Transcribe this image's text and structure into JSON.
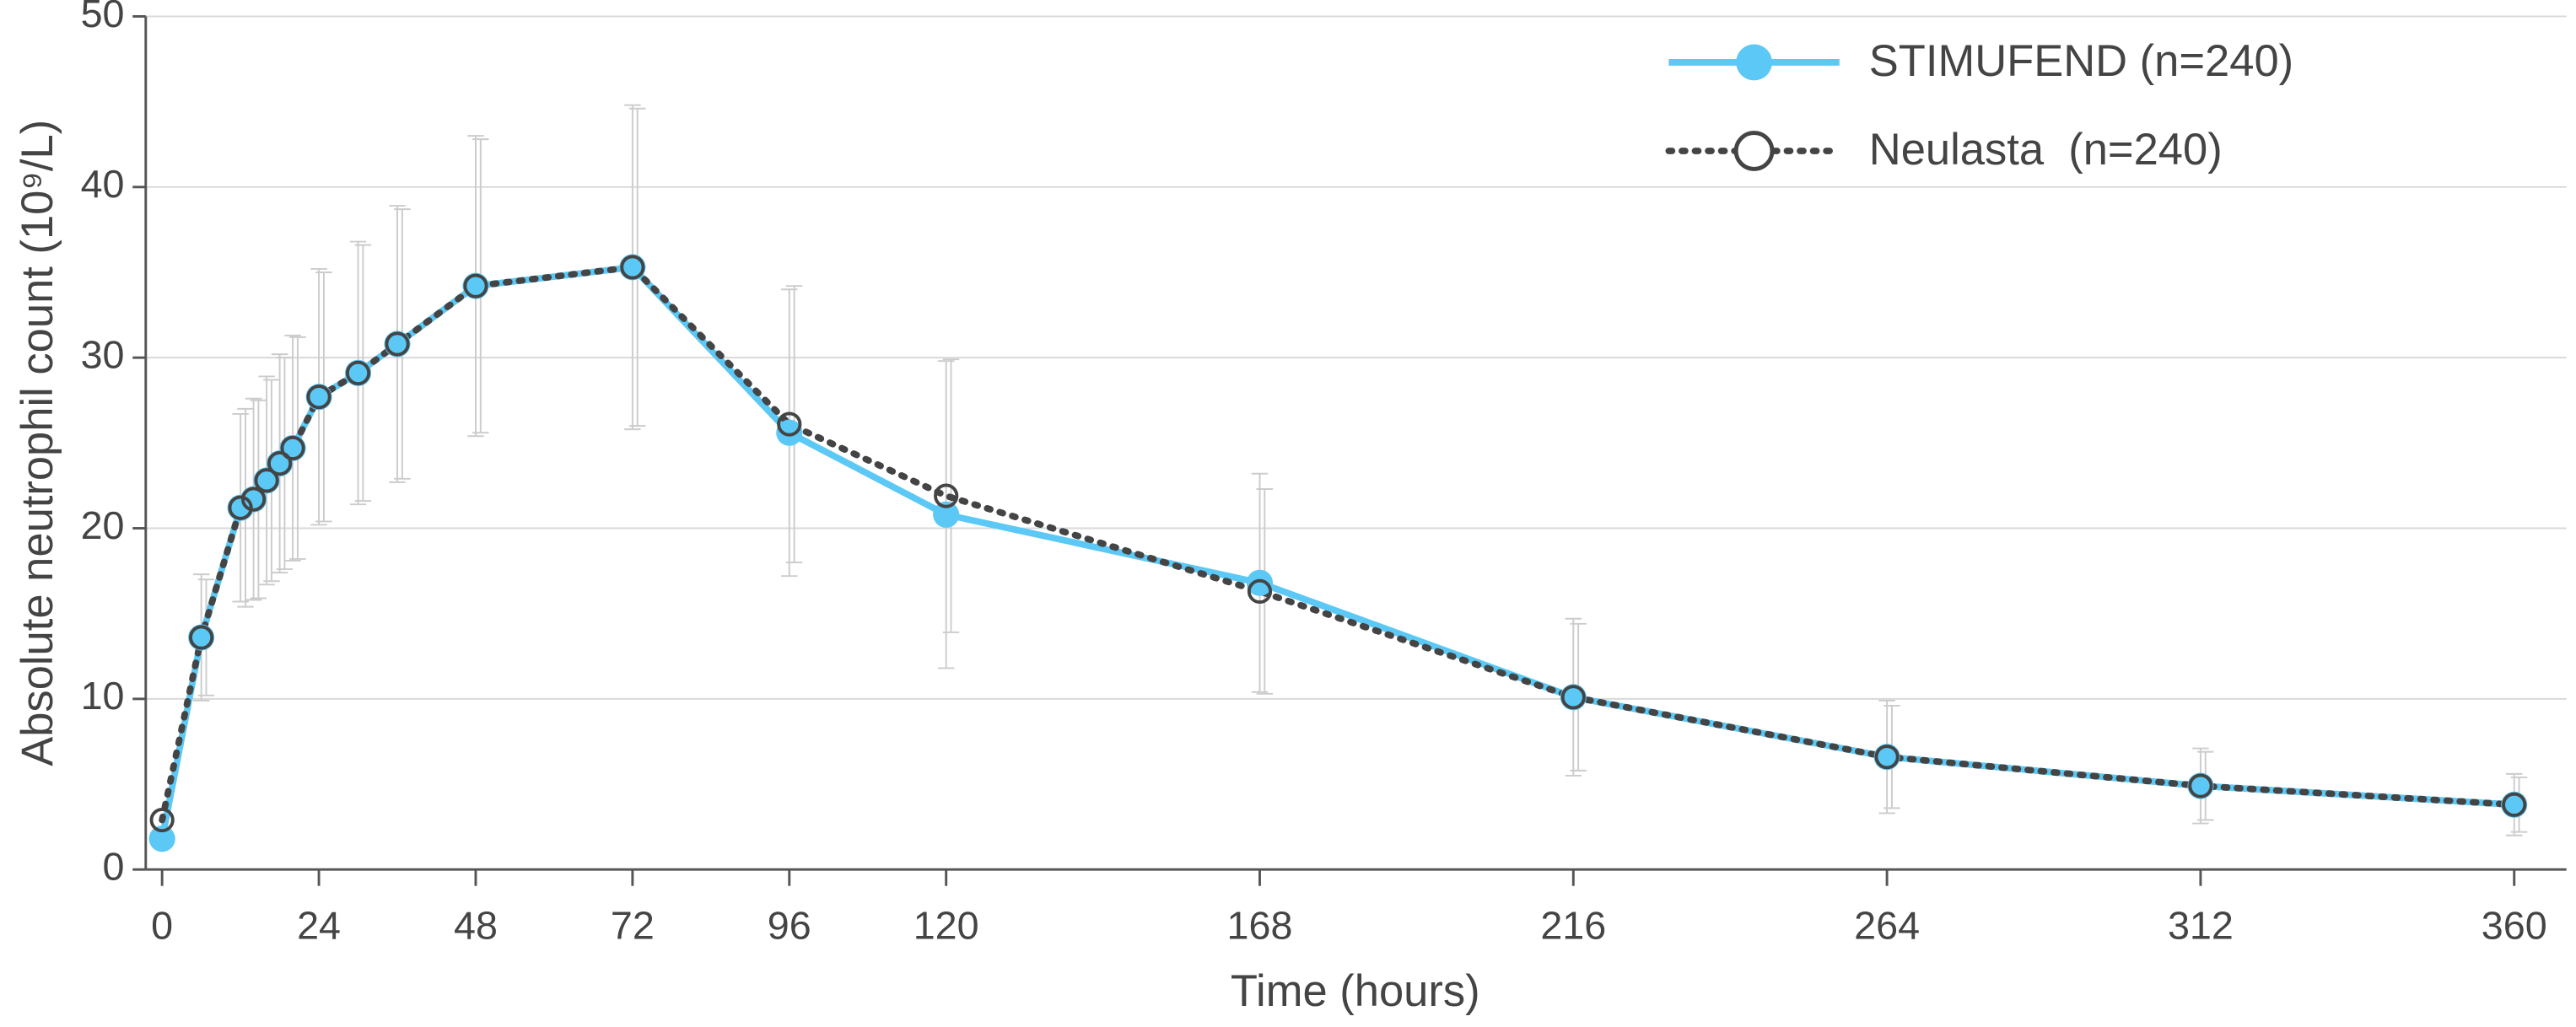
{
  "chart_data": {
    "type": "line",
    "x_label": "Time (hours)",
    "y_label": "Absolute neutrophil count (10⁹/L)",
    "x": [
      0,
      6,
      12,
      14,
      16,
      18,
      20,
      24,
      30,
      36,
      48,
      72,
      96,
      120,
      168,
      216,
      264,
      312,
      360
    ],
    "series": [
      {
        "name": "STIMUFEND (n=240)",
        "color": "#5bc8f5",
        "line_style": "solid",
        "marker_fill": "#5bc8f5",
        "values": [
          1.8,
          13.6,
          21.2,
          21.7,
          22.8,
          23.8,
          24.7,
          27.7,
          29.1,
          30.8,
          34.2,
          35.3,
          25.6,
          20.8,
          16.8,
          10.1,
          6.6,
          4.9,
          3.8
        ],
        "errors": [
          null,
          3.7,
          5.5,
          5.9,
          6.1,
          6.4,
          6.6,
          7.5,
          7.7,
          8.1,
          8.8,
          9.5,
          8.4,
          9.0,
          6.4,
          4.6,
          3.3,
          2.2,
          1.8
        ]
      },
      {
        "name": "Neulasta  (n=240)",
        "color": "#444444",
        "line_style": "dotted",
        "marker_fill": "#ffffff",
        "values": [
          2.9,
          13.6,
          21.2,
          21.7,
          22.8,
          23.8,
          24.7,
          27.7,
          29.1,
          30.8,
          34.2,
          35.3,
          26.1,
          21.9,
          16.3,
          10.1,
          6.6,
          4.9,
          3.8
        ],
        "errors": [
          null,
          3.4,
          5.8,
          5.8,
          5.9,
          6.2,
          6.5,
          7.3,
          7.5,
          7.9,
          8.6,
          9.3,
          8.1,
          8.0,
          6.0,
          4.3,
          3.0,
          2.0,
          1.6
        ]
      }
    ],
    "xlim": [
      -2.5,
      368
    ],
    "ylim": [
      0,
      50
    ],
    "xticks": [
      0,
      24,
      48,
      72,
      96,
      120,
      168,
      216,
      264,
      312,
      360
    ],
    "yticks": [
      0,
      10,
      20,
      30,
      40,
      50
    ],
    "grid": "y",
    "legend": "upper right"
  }
}
